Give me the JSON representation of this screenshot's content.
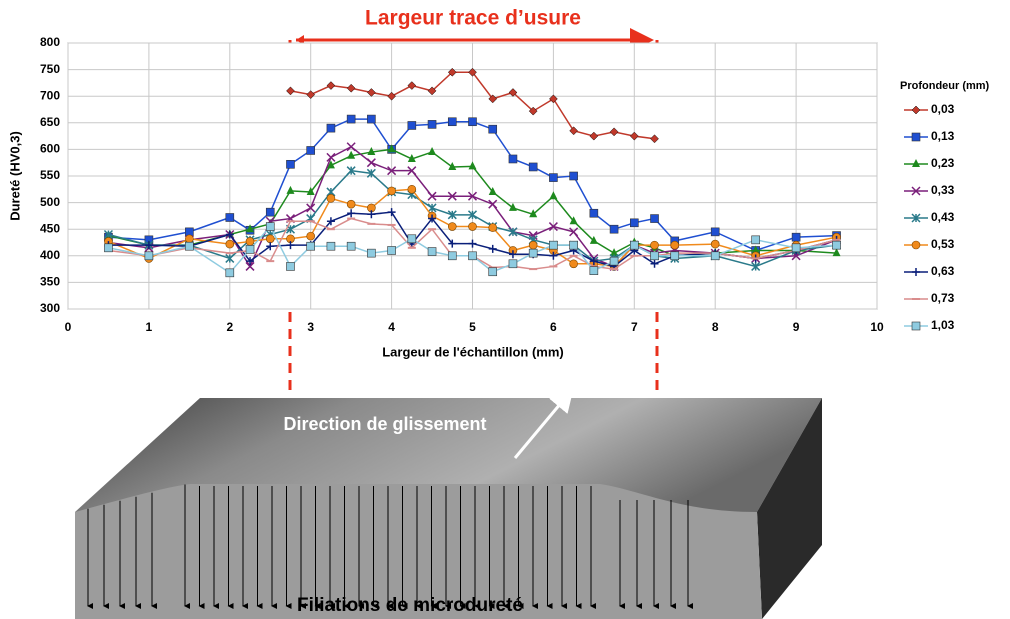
{
  "chart_data": {
    "type": "line",
    "annotations": [
      "Largeur trace d’usure",
      "Direction de glissement",
      "Filiations de microdureté"
    ],
    "x_label": "Largeur de l'échantillon (mm)",
    "y_label": "Dureté (HV0,3)",
    "legend_title": "Profondeur  (mm)",
    "legend_position": "right",
    "grid": true,
    "xlim": [
      0,
      10
    ],
    "xticks": [
      0,
      1,
      2,
      3,
      4,
      5,
      6,
      7,
      8,
      9,
      10
    ],
    "ylim": [
      300,
      800
    ],
    "yticks": [
      300,
      350,
      400,
      450,
      500,
      550,
      600,
      650,
      700,
      750,
      800
    ],
    "x": [
      0.5,
      1,
      1.5,
      2,
      2.25,
      2.5,
      2.75,
      3,
      3.25,
      3.5,
      3.75,
      4,
      4.25,
      4.5,
      4.75,
      5,
      5.25,
      5.5,
      5.75,
      6,
      6.25,
      6.5,
      6.75,
      7,
      7.25,
      7.5,
      8,
      8.5,
      9,
      9.5
    ],
    "series": [
      {
        "name": "0,03",
        "color": "#c0392b",
        "marker": "diamond",
        "values": [
          null,
          null,
          null,
          null,
          null,
          null,
          710,
          703,
          720,
          715,
          707,
          700,
          720,
          710,
          745,
          745,
          695,
          707,
          672,
          695,
          635,
          625,
          633,
          625,
          620,
          null,
          null,
          null,
          null,
          null
        ]
      },
      {
        "name": "0,13",
        "color": "#1f4fd1",
        "marker": "square",
        "values": [
          435,
          430,
          445,
          472,
          448,
          482,
          572,
          598,
          640,
          657,
          657,
          600,
          645,
          647,
          652,
          652,
          638,
          582,
          567,
          547,
          550,
          480,
          450,
          462,
          470,
          428,
          445,
          410,
          435,
          438
        ]
      },
      {
        "name": "0,23",
        "color": "#1e8a1e",
        "marker": "triangle",
        "values": [
          438,
          420,
          420,
          440,
          450,
          460,
          522,
          520,
          570,
          588,
          595,
          600,
          582,
          595,
          567,
          568,
          520,
          490,
          478,
          512,
          465,
          428,
          405,
          425,
          415,
          400,
          405,
          410,
          410,
          405
        ]
      },
      {
        "name": "0,33",
        "color": "#7a1f7a",
        "marker": "x",
        "values": [
          425,
          415,
          430,
          440,
          380,
          465,
          470,
          490,
          585,
          605,
          575,
          560,
          560,
          512,
          512,
          512,
          497,
          445,
          438,
          455,
          445,
          395,
          380,
          420,
          405,
          410,
          405,
          395,
          400,
          430
        ]
      },
      {
        "name": "0,43",
        "color": "#2a7a8a",
        "marker": "star",
        "values": [
          440,
          420,
          420,
          395,
          430,
          440,
          450,
          470,
          520,
          560,
          555,
          520,
          515,
          490,
          477,
          477,
          455,
          445,
          430,
          420,
          420,
          390,
          395,
          420,
          400,
          395,
          400,
          380,
          410,
          420
        ]
      },
      {
        "name": "0,53",
        "color": "#f08a1c",
        "marker": "circle",
        "values": [
          427,
          395,
          432,
          422,
          427,
          432,
          432,
          437,
          508,
          497,
          490,
          522,
          525,
          475,
          455,
          455,
          453,
          410,
          420,
          410,
          385,
          385,
          380,
          420,
          420,
          420,
          422,
          400,
          420,
          435
        ]
      },
      {
        "name": "0,63",
        "color": "#0a1f7a",
        "marker": "plus",
        "values": [
          420,
          420,
          418,
          440,
          390,
          418,
          420,
          420,
          465,
          480,
          478,
          482,
          422,
          470,
          423,
          423,
          413,
          403,
          403,
          400,
          410,
          390,
          380,
          410,
          385,
          400,
          405,
          395,
          410,
          430
        ]
      },
      {
        "name": "0,73",
        "color": "#d98c8c",
        "marker": "dash",
        "values": [
          410,
          400,
          415,
          405,
          410,
          390,
          465,
          465,
          450,
          470,
          460,
          458,
          415,
          450,
          400,
          400,
          378,
          380,
          375,
          380,
          400,
          380,
          375,
          400,
          400,
          405,
          405,
          395,
          410,
          430
        ]
      },
      {
        "name": "1,03",
        "color": "#8ecbe0",
        "marker": "square",
        "values": [
          415,
          400,
          418,
          368,
          412,
          455,
          380,
          418,
          418,
          418,
          405,
          410,
          432,
          408,
          400,
          400,
          370,
          385,
          405,
          420,
          420,
          372,
          390,
          420,
          400,
          400,
          400,
          430,
          415,
          420
        ]
      }
    ]
  }
}
